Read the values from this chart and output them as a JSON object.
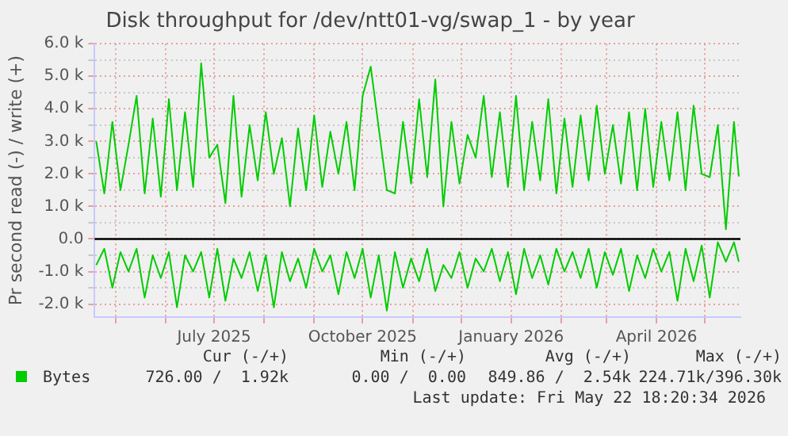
{
  "chart_data": {
    "type": "line",
    "title": "Disk throughput for /dev/ntt01-vg/swap_1 - by year",
    "ylabel": "Pr second read (-) / write (+)",
    "x": [
      "2025-04-19",
      "2025-04-24",
      "2025-04-29",
      "2025-05-04",
      "2025-05-09",
      "2025-05-14",
      "2025-05-19",
      "2025-05-24",
      "2025-05-29",
      "2025-06-03",
      "2025-06-08",
      "2025-06-13",
      "2025-06-18",
      "2025-06-23",
      "2025-06-28",
      "2025-07-03",
      "2025-07-08",
      "2025-07-13",
      "2025-07-18",
      "2025-07-23",
      "2025-07-28",
      "2025-08-02",
      "2025-08-07",
      "2025-08-12",
      "2025-08-17",
      "2025-08-22",
      "2025-08-27",
      "2025-09-01",
      "2025-09-06",
      "2025-09-11",
      "2025-09-16",
      "2025-09-21",
      "2025-09-26",
      "2025-10-01",
      "2025-10-06",
      "2025-10-11",
      "2025-10-16",
      "2025-10-21",
      "2025-10-26",
      "2025-10-31",
      "2025-11-05",
      "2025-11-10",
      "2025-11-15",
      "2025-11-20",
      "2025-11-25",
      "2025-11-30",
      "2025-12-05",
      "2025-12-10",
      "2025-12-15",
      "2025-12-20",
      "2025-12-25",
      "2025-12-30",
      "2026-01-04",
      "2026-01-09",
      "2026-01-14",
      "2026-01-19",
      "2026-01-24",
      "2026-01-29",
      "2026-02-03",
      "2026-02-08",
      "2026-02-13",
      "2026-02-18",
      "2026-02-23",
      "2026-02-28",
      "2026-03-05",
      "2026-03-10",
      "2026-03-15",
      "2026-03-20",
      "2026-03-25",
      "2026-03-30",
      "2026-04-04",
      "2026-04-09",
      "2026-04-14",
      "2026-04-19",
      "2026-04-24",
      "2026-04-29",
      "2026-05-04",
      "2026-05-09",
      "2026-05-14",
      "2026-05-19",
      "2026-05-22"
    ],
    "series": [
      {
        "name": "Bytes",
        "color": "#00cc00",
        "values": [
          3000,
          1400,
          3600,
          1500,
          2900,
          4400,
          1400,
          3700,
          1300,
          4300,
          1500,
          3900,
          1600,
          5400,
          2500,
          2900,
          1100,
          4400,
          1300,
          3500,
          1800,
          3900,
          2000,
          3100,
          1000,
          3400,
          1500,
          3800,
          1600,
          3300,
          2000,
          3600,
          1500,
          4400,
          5300,
          3400,
          1500,
          1400,
          3600,
          1700,
          4300,
          1900,
          4900,
          1000,
          3600,
          1700,
          3200,
          2500,
          4400,
          1900,
          3900,
          1600,
          4400,
          1500,
          3600,
          1800,
          4300,
          1400,
          3700,
          1600,
          3800,
          1800,
          4100,
          2000,
          3500,
          1700,
          3900,
          1500,
          4000,
          1600,
          3600,
          1800,
          3900,
          1500,
          4100,
          2000,
          1900,
          3500,
          300,
          3600,
          1920
        ]
      },
      {
        "color": "#00cc00",
        "values": [
          -800,
          -300,
          -1500,
          -400,
          -1000,
          -300,
          -1800,
          -500,
          -1200,
          -400,
          -2100,
          -500,
          -1000,
          -400,
          -1800,
          -300,
          -1900,
          -600,
          -1200,
          -400,
          -1600,
          -500,
          -2100,
          -400,
          -1300,
          -600,
          -1500,
          -300,
          -1000,
          -500,
          -1700,
          -400,
          -1200,
          -300,
          -1800,
          -500,
          -2200,
          -400,
          -1500,
          -600,
          -1300,
          -300,
          -1600,
          -800,
          -1200,
          -400,
          -1500,
          -600,
          -1000,
          -300,
          -1300,
          -400,
          -1700,
          -300,
          -1200,
          -500,
          -1400,
          -300,
          -1000,
          -400,
          -1200,
          -300,
          -1500,
          -400,
          -1100,
          -300,
          -1600,
          -500,
          -1200,
          -300,
          -1000,
          -400,
          -1900,
          -300,
          -1300,
          -200,
          -1800,
          -100,
          -700,
          -100,
          -700
        ]
      }
    ],
    "xlim": [
      "2025-04-18",
      "2026-05-23"
    ],
    "xticks": [
      {
        "value": "2025-05-01",
        "label": null
      },
      {
        "value": "2025-06-01",
        "label": null
      },
      {
        "value": "2025-07-01",
        "label": "July 2025"
      },
      {
        "value": "2025-08-01",
        "label": null
      },
      {
        "value": "2025-09-01",
        "label": null
      },
      {
        "value": "2025-10-01",
        "label": "October 2025"
      },
      {
        "value": "2025-11-01",
        "label": null
      },
      {
        "value": "2025-12-01",
        "label": null
      },
      {
        "value": "2026-01-01",
        "label": "January 2026"
      },
      {
        "value": "2026-02-01",
        "label": null
      },
      {
        "value": "2026-03-01",
        "label": null
      },
      {
        "value": "2026-04-01",
        "label": "April 2026"
      },
      {
        "value": "2026-05-01",
        "label": null
      }
    ],
    "ylim": [
      -2400,
      6000
    ],
    "yticks": [
      {
        "value": -2000,
        "label": "-2.0 k"
      },
      {
        "value": -1500,
        "label": null
      },
      {
        "value": -1000,
        "label": "-1.0 k"
      },
      {
        "value": -500,
        "label": null
      },
      {
        "value": 0,
        "label": "0.0"
      },
      {
        "value": 500,
        "label": null
      },
      {
        "value": 1000,
        "label": "1.0 k"
      },
      {
        "value": 1500,
        "label": null
      },
      {
        "value": 2000,
        "label": "2.0 k"
      },
      {
        "value": 2500,
        "label": null
      },
      {
        "value": 3000,
        "label": "3.0 k"
      },
      {
        "value": 3500,
        "label": null
      },
      {
        "value": 4000,
        "label": "4.0 k"
      },
      {
        "value": 4500,
        "label": null
      },
      {
        "value": 5000,
        "label": "5.0 k"
      },
      {
        "value": 5500,
        "label": null
      },
      {
        "value": 6000,
        "label": "6.0 k"
      }
    ],
    "ref_lines": [
      {
        "axis": "y",
        "value": 0,
        "color": "#000000"
      }
    ],
    "grid": true,
    "legend": "bottom left",
    "marker": "none",
    "line_style": "solid",
    "annotations": [
      "Cur (-/+)",
      "Min (-/+)",
      "Avg (-/+)",
      "Max (-/+)",
      "726.00 /  1.92k",
      "0.00 /  0.00",
      "849.86 /  2.54k",
      "224.71k/396.30k",
      "Last update: Fri May 22 18:20:34 2026"
    ]
  }
}
